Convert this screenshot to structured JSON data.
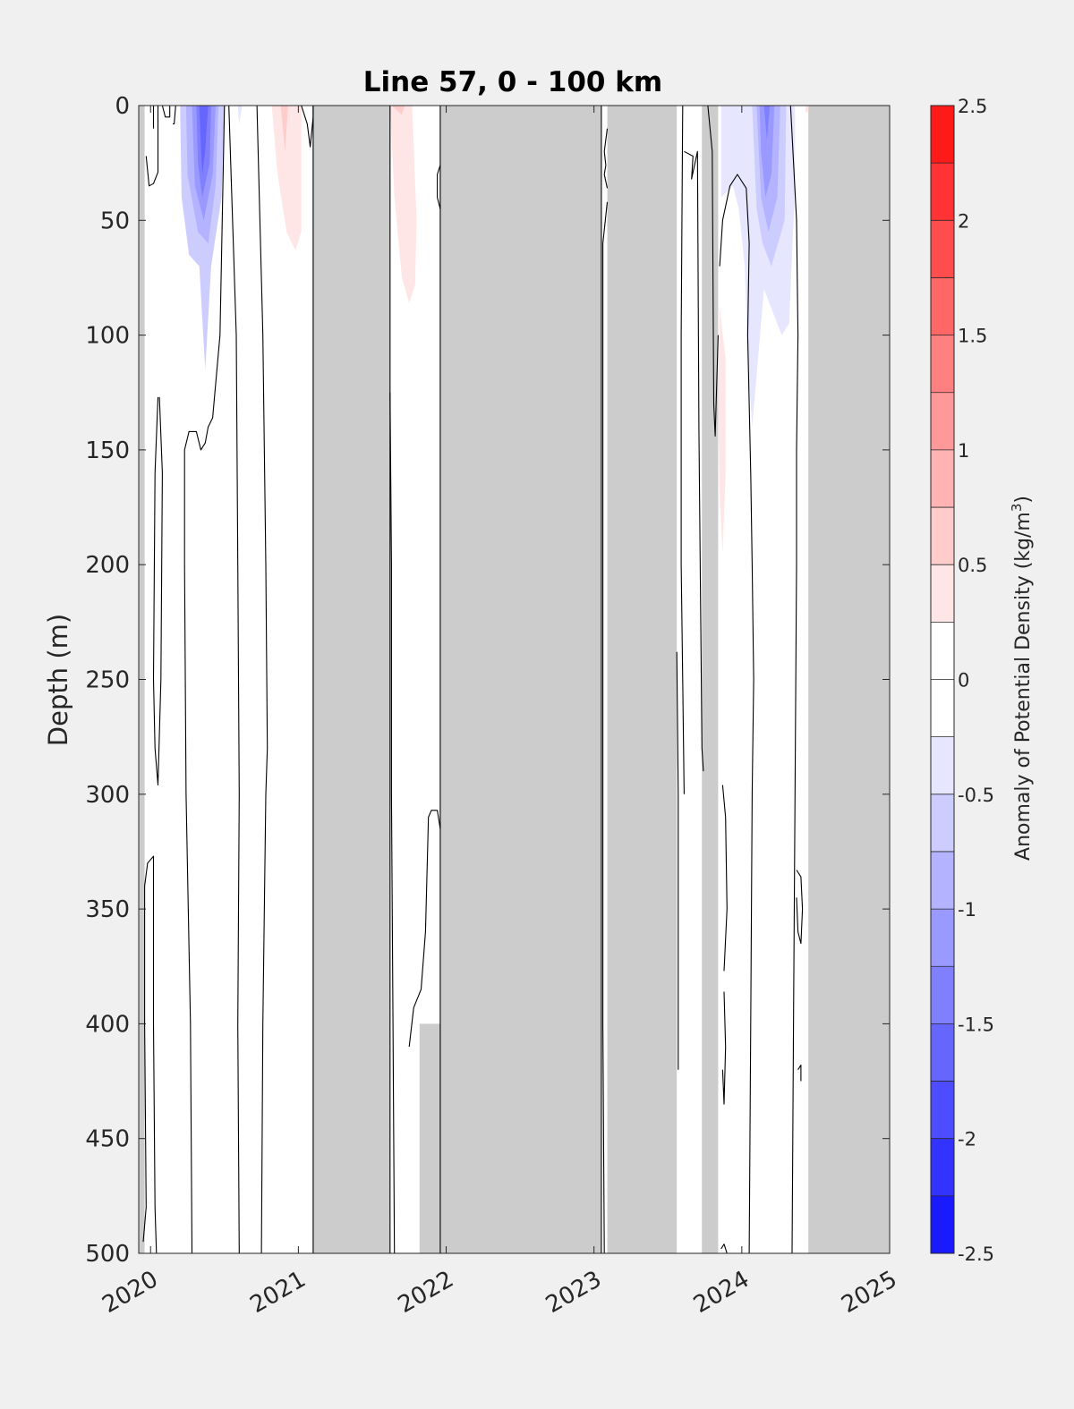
{
  "chart_data": {
    "type": "heatmap",
    "title": "Line 57, 0 - 100 km",
    "ylabel": "Depth (m)",
    "xlabel": "",
    "colorbar_label_main": "Anomaly of Potential Density (kg/m",
    "colorbar_label_sup": "3",
    "colorbar_label_close": ")",
    "xlim": [
      2019.92,
      2025.0
    ],
    "ylim": [
      0,
      500
    ],
    "y_reversed": true,
    "x_ticks": [
      2020,
      2021,
      2022,
      2023,
      2024,
      2025
    ],
    "x_tick_labels": [
      "2020",
      "2021",
      "2022",
      "2023",
      "2024",
      "2025"
    ],
    "y_ticks": [
      0,
      50,
      100,
      150,
      200,
      250,
      300,
      350,
      400,
      450,
      500
    ],
    "y_tick_labels": [
      "0",
      "50",
      "100",
      "150",
      "200",
      "250",
      "300",
      "350",
      "400",
      "450",
      "500"
    ],
    "clim": [
      -2.5,
      2.5
    ],
    "colorbar_levels": 20,
    "colorbar_ticks": [
      2.5,
      2,
      1.5,
      1,
      0.5,
      0,
      -0.5,
      -1,
      -1.5,
      -2,
      -2.5
    ],
    "colorbar_tick_labels": [
      "2.5",
      "2",
      "1.5",
      "1",
      "0.5",
      "0",
      "-0.5",
      "-1",
      "-1.5",
      "-2",
      "-2.5"
    ],
    "colormap_endpoints": {
      "high": "#ff0000",
      "mid": "#ffffff",
      "low": "#0000ff"
    },
    "no_data_color": "#cccccc",
    "no_data_bands": [
      {
        "x0": 2019.92,
        "x1": 2019.96,
        "y0": 0,
        "y1": 500
      },
      {
        "x0": 2021.1,
        "x1": 2021.62,
        "y0": 0,
        "y1": 500
      },
      {
        "x0": 2021.96,
        "x1": 2023.05,
        "y0": 0,
        "y1": 500
      },
      {
        "x0": 2023.09,
        "x1": 2023.56,
        "y0": 0,
        "y1": 500
      },
      {
        "x0": 2023.73,
        "x1": 2023.84,
        "y0": 0,
        "y1": 500
      },
      {
        "x0": 2024.45,
        "x1": 2025.0,
        "y0": 0,
        "y1": 500
      },
      {
        "x0": 2021.82,
        "x1": 2021.96,
        "y0": 400,
        "y1": 500
      }
    ],
    "anomaly_regions": [
      {
        "value": -0.5,
        "points": [
          [
            2020.2,
            0
          ],
          [
            2020.5,
            0
          ],
          [
            2020.48,
            40
          ],
          [
            2020.41,
            70
          ],
          [
            2020.37,
            115
          ],
          [
            2020.33,
            70
          ],
          [
            2020.26,
            65
          ],
          [
            2020.21,
            40
          ]
        ]
      },
      {
        "value": -0.75,
        "points": [
          [
            2020.24,
            0
          ],
          [
            2020.46,
            0
          ],
          [
            2020.44,
            35
          ],
          [
            2020.39,
            60
          ],
          [
            2020.32,
            55
          ],
          [
            2020.25,
            30
          ]
        ]
      },
      {
        "value": -1.0,
        "points": [
          [
            2020.28,
            0
          ],
          [
            2020.44,
            0
          ],
          [
            2020.42,
            30
          ],
          [
            2020.36,
            50
          ],
          [
            2020.3,
            35
          ]
        ]
      },
      {
        "value": -1.25,
        "points": [
          [
            2020.31,
            0
          ],
          [
            2020.41,
            0
          ],
          [
            2020.4,
            25
          ],
          [
            2020.35,
            40
          ],
          [
            2020.32,
            25
          ]
        ]
      },
      {
        "value": -1.5,
        "points": [
          [
            2020.33,
            0
          ],
          [
            2020.39,
            0
          ],
          [
            2020.37,
            20
          ],
          [
            2020.35,
            30
          ],
          [
            2020.34,
            18
          ]
        ]
      },
      {
        "value": -0.25,
        "points": [
          [
            2020.59,
            0
          ],
          [
            2020.62,
            0
          ],
          [
            2020.6,
            8
          ]
        ]
      },
      {
        "value": 0.25,
        "points": [
          [
            2020.82,
            0
          ],
          [
            2021.02,
            0
          ],
          [
            2021.02,
            55
          ],
          [
            2020.98,
            63
          ],
          [
            2020.92,
            55
          ],
          [
            2020.86,
            30
          ]
        ]
      },
      {
        "value": 0.5,
        "points": [
          [
            2020.88,
            0
          ],
          [
            2020.93,
            0
          ],
          [
            2020.91,
            20
          ]
        ]
      },
      {
        "value": 0.25,
        "points": [
          [
            2021.62,
            0
          ],
          [
            2021.77,
            0
          ],
          [
            2021.8,
            50
          ],
          [
            2021.79,
            78
          ],
          [
            2021.75,
            86
          ],
          [
            2021.7,
            75
          ],
          [
            2021.65,
            40
          ]
        ]
      },
      {
        "value": 0.5,
        "points": [
          [
            2021.63,
            0
          ],
          [
            2021.72,
            0
          ],
          [
            2021.7,
            4
          ]
        ]
      },
      {
        "value": -0.25,
        "points": [
          [
            2023.86,
            0
          ],
          [
            2024.36,
            0
          ],
          [
            2024.36,
            35
          ],
          [
            2024.32,
            95
          ],
          [
            2024.27,
            100
          ],
          [
            2024.15,
            80
          ],
          [
            2024.07,
            140
          ],
          [
            2024.04,
            110
          ],
          [
            2024.02,
            70
          ],
          [
            2023.98,
            45
          ],
          [
            2023.94,
            35
          ],
          [
            2023.86,
            40
          ]
        ]
      },
      {
        "value": -0.5,
        "points": [
          [
            2024.07,
            0
          ],
          [
            2024.3,
            0
          ],
          [
            2024.29,
            50
          ],
          [
            2024.2,
            70
          ],
          [
            2024.14,
            60
          ],
          [
            2024.1,
            45
          ]
        ]
      },
      {
        "value": -0.75,
        "points": [
          [
            2024.1,
            0
          ],
          [
            2024.26,
            0
          ],
          [
            2024.24,
            40
          ],
          [
            2024.18,
            55
          ],
          [
            2024.13,
            40
          ]
        ]
      },
      {
        "value": -1.0,
        "points": [
          [
            2024.12,
            0
          ],
          [
            2024.22,
            0
          ],
          [
            2024.2,
            30
          ],
          [
            2024.16,
            40
          ],
          [
            2024.13,
            20
          ]
        ]
      },
      {
        "value": -1.25,
        "points": [
          [
            2024.15,
            0
          ],
          [
            2024.19,
            0
          ],
          [
            2024.17,
            15
          ]
        ]
      },
      {
        "value": 0.25,
        "points": [
          [
            2023.85,
            88
          ],
          [
            2023.89,
            110
          ],
          [
            2023.89,
            160
          ],
          [
            2023.87,
            195
          ],
          [
            2023.85,
            170
          ],
          [
            2023.84,
            130
          ]
        ]
      },
      {
        "value": 0.25,
        "points": [
          [
            2024.43,
            0
          ],
          [
            2024.45,
            0
          ],
          [
            2024.45,
            3
          ],
          [
            2024.43,
            3
          ]
        ]
      }
    ],
    "contour_lines": [
      [
        [
          2019.97,
          22
        ],
        [
          2019.99,
          35
        ],
        [
          2020.02,
          34
        ],
        [
          2020.05,
          29
        ],
        [
          2020.05,
          0
        ]
      ],
      [
        [
          2020.08,
          0
        ],
        [
          2020.1,
          5
        ],
        [
          2020.13,
          5
        ],
        [
          2020.13,
          0
        ]
      ],
      [
        [
          2020.02,
          0
        ],
        [
          2020.02,
          10
        ]
      ],
      [
        [
          2020.05,
          127
        ],
        [
          2020.03,
          160
        ],
        [
          2020.02,
          250
        ],
        [
          2020.03,
          280
        ],
        [
          2020.05,
          296
        ],
        [
          2020.07,
          250
        ],
        [
          2020.08,
          160
        ],
        [
          2020.06,
          127
        ]
      ],
      [
        [
          2019.95,
          495
        ],
        [
          2019.97,
          480
        ],
        [
          2019.96,
          400
        ],
        [
          2019.96,
          340
        ],
        [
          2019.98,
          330
        ],
        [
          2020.02,
          327
        ],
        [
          2020.02,
          400
        ],
        [
          2020.03,
          480
        ],
        [
          2020.04,
          500
        ]
      ],
      [
        [
          2020.14,
          0
        ],
        [
          2020.17,
          0
        ],
        [
          2020.16,
          8
        ],
        [
          2020.15,
          8
        ]
      ],
      [
        [
          2020.28,
          500
        ],
        [
          2020.27,
          400
        ],
        [
          2020.24,
          300
        ],
        [
          2020.23,
          200
        ],
        [
          2020.23,
          150
        ],
        [
          2020.26,
          142
        ],
        [
          2020.31,
          142
        ],
        [
          2020.34,
          150
        ],
        [
          2020.37,
          147
        ],
        [
          2020.39,
          140
        ],
        [
          2020.42,
          136
        ],
        [
          2020.47,
          100
        ],
        [
          2020.5,
          0
        ]
      ],
      [
        [
          2020.53,
          0
        ],
        [
          2020.58,
          100
        ],
        [
          2020.59,
          200
        ],
        [
          2020.6,
          300
        ],
        [
          2020.59,
          400
        ],
        [
          2020.6,
          500
        ]
      ],
      [
        [
          2020.72,
          0
        ],
        [
          2020.76,
          100
        ],
        [
          2020.78,
          200
        ],
        [
          2020.79,
          280
        ],
        [
          2020.78,
          300
        ],
        [
          2020.76,
          400
        ],
        [
          2020.75,
          500
        ]
      ],
      [
        [
          2021.02,
          0
        ],
        [
          2021.06,
          8
        ],
        [
          2021.08,
          18
        ],
        [
          2021.1,
          5
        ],
        [
          2021.1,
          0
        ]
      ],
      [
        [
          2021.1,
          0
        ],
        [
          2021.1,
          500
        ]
      ],
      [
        [
          2021.62,
          0
        ],
        [
          2021.62,
          500
        ]
      ],
      [
        [
          2021.65,
          500
        ],
        [
          2021.64,
          400
        ],
        [
          2021.63,
          300
        ],
        [
          2021.63,
          200
        ],
        [
          2021.62,
          125
        ]
      ],
      [
        [
          2021.96,
          26
        ],
        [
          2021.94,
          30
        ],
        [
          2021.94,
          40
        ],
        [
          2021.96,
          45
        ]
      ],
      [
        [
          2021.75,
          410
        ],
        [
          2021.78,
          393
        ],
        [
          2021.83,
          385
        ],
        [
          2021.86,
          360
        ],
        [
          2021.88,
          310
        ],
        [
          2021.9,
          307
        ],
        [
          2021.94,
          307
        ],
        [
          2021.96,
          315
        ]
      ],
      [
        [
          2021.96,
          0
        ],
        [
          2021.96,
          500
        ]
      ],
      [
        [
          2023.05,
          0
        ],
        [
          2023.05,
          500
        ]
      ],
      [
        [
          2023.07,
          500
        ],
        [
          2023.06,
          400
        ],
        [
          2023.06,
          200
        ],
        [
          2023.06,
          60
        ],
        [
          2023.09,
          42
        ]
      ],
      [
        [
          2023.09,
          10
        ],
        [
          2023.07,
          20
        ],
        [
          2023.08,
          26
        ],
        [
          2023.07,
          30
        ],
        [
          2023.09,
          36
        ]
      ],
      [
        [
          2023.56,
          238
        ],
        [
          2023.57,
          300
        ],
        [
          2023.57,
          420
        ]
      ],
      [
        [
          2023.6,
          0
        ],
        [
          2023.59,
          100
        ],
        [
          2023.59,
          200
        ],
        [
          2023.6,
          250
        ],
        [
          2023.61,
          300
        ]
      ],
      [
        [
          2023.61,
          20
        ],
        [
          2023.67,
          22
        ],
        [
          2023.66,
          32
        ],
        [
          2023.7,
          20
        ],
        [
          2023.71,
          140
        ],
        [
          2023.73,
          280
        ],
        [
          2023.74,
          290
        ]
      ],
      [
        [
          2023.77,
          0
        ],
        [
          2023.8,
          20
        ],
        [
          2023.81,
          130
        ],
        [
          2023.82,
          144
        ],
        [
          2023.84,
          100
        ]
      ],
      [
        [
          2023.87,
          296
        ],
        [
          2023.89,
          310
        ],
        [
          2023.9,
          350
        ],
        [
          2023.88,
          377
        ]
      ],
      [
        [
          2023.88,
          386
        ],
        [
          2023.89,
          410
        ],
        [
          2023.88,
          435
        ],
        [
          2023.87,
          420
        ]
      ],
      [
        [
          2023.86,
          498
        ],
        [
          2023.88,
          496
        ],
        [
          2023.9,
          500
        ]
      ],
      [
        [
          2023.85,
          70
        ],
        [
          2023.87,
          50
        ],
        [
          2023.92,
          35
        ],
        [
          2023.97,
          30
        ],
        [
          2024.03,
          36
        ],
        [
          2024.05,
          60
        ],
        [
          2024.04,
          100
        ],
        [
          2024.06,
          160
        ],
        [
          2024.07,
          200
        ],
        [
          2024.08,
          250
        ],
        [
          2024.07,
          300
        ],
        [
          2024.06,
          400
        ],
        [
          2024.05,
          500
        ]
      ],
      [
        [
          2024.33,
          0
        ],
        [
          2024.37,
          50
        ],
        [
          2024.38,
          100
        ],
        [
          2024.37,
          150
        ],
        [
          2024.37,
          200
        ],
        [
          2024.36,
          300
        ],
        [
          2024.35,
          400
        ],
        [
          2024.34,
          500
        ]
      ],
      [
        [
          2024.37,
          333
        ],
        [
          2024.4,
          336
        ],
        [
          2024.41,
          350
        ],
        [
          2024.4,
          365
        ],
        [
          2024.38,
          360
        ],
        [
          2024.37,
          345
        ]
      ],
      [
        [
          2024.38,
          420
        ],
        [
          2024.4,
          418
        ],
        [
          2024.4,
          425
        ]
      ]
    ]
  }
}
